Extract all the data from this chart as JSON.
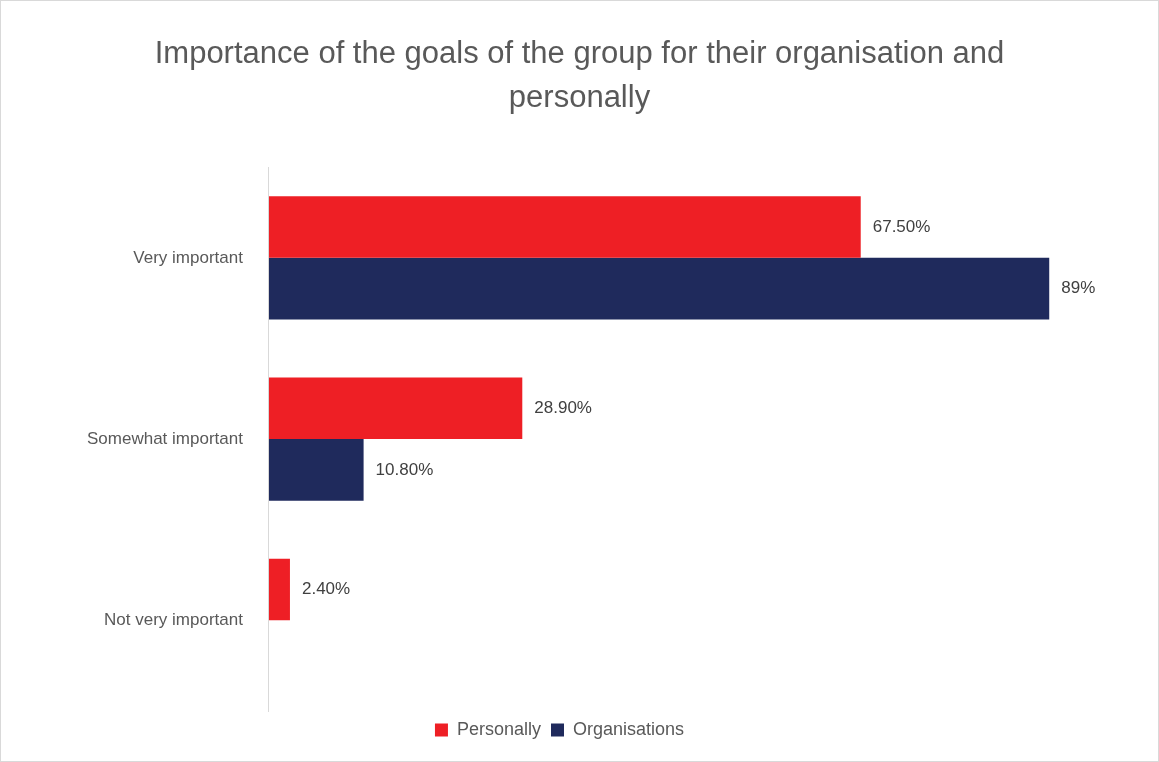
{
  "chart_data": {
    "type": "bar",
    "orientation": "horizontal",
    "title": "Importance of the goals of the group for their organisation and personally",
    "categories": [
      "Very important",
      "Somewhat important",
      "Not very important"
    ],
    "series": [
      {
        "name": "Personally",
        "color": "#ee1f25",
        "values": [
          67.5,
          28.9,
          2.4
        ],
        "value_labels": [
          "67.50%",
          "28.90%",
          "2.40%"
        ]
      },
      {
        "name": "Organisations",
        "color": "#1f2a5c",
        "values": [
          89,
          10.8,
          null
        ],
        "value_labels": [
          "89%",
          "10.80%",
          null
        ]
      }
    ],
    "tick_labels": "y",
    "legend": "bottom"
  }
}
